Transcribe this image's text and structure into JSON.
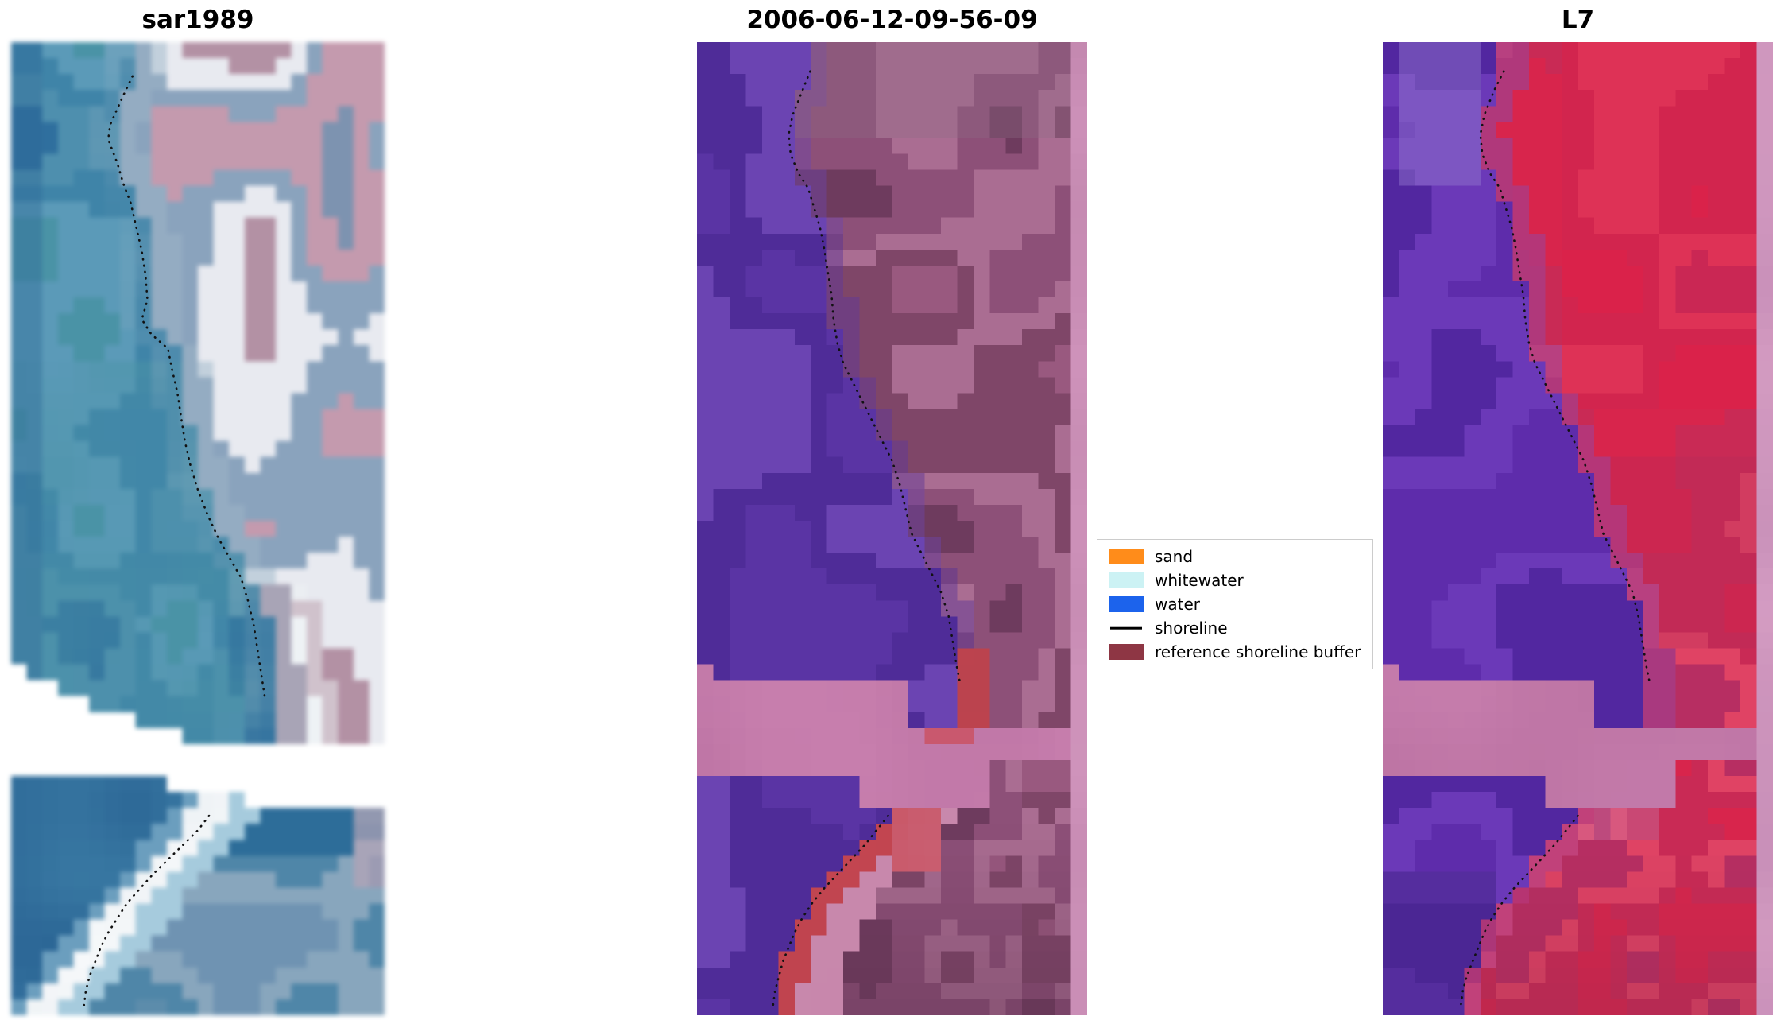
{
  "figure": {
    "background": "#ffffff",
    "shoreline_dot_color": "#111111",
    "panels": [
      {
        "id": "sar1989",
        "title": "sar1989",
        "grid": {
          "cols": 24,
          "rows": 61
        },
        "colors": {
          "water": [
            "#2f6f9e",
            "#4e8fae",
            "#3f84a8",
            "#5b9ab8",
            "#4a93a6"
          ],
          "teal": "#4a93a6",
          "deep": "#2c6796",
          "land": [
            "#b391a4",
            "#e8eaf0",
            "#8aa3bd",
            "#c49aae",
            "#7d93b0"
          ],
          "boundary_light": "#9db6c8",
          "white": "#ffffff",
          "near_white": "#eef2f5",
          "light_blue": "#a6cbdd",
          "dark_blue": "#2d6d99",
          "pink": "#c9a3b4",
          "steel": "#3a7aa4",
          "bluegray": [
            "#6f93b2",
            "#88a6bd",
            "#4f86a8",
            "#5c8cab"
          ]
        }
      },
      {
        "id": "scene2006",
        "title": "2006-06-12-09-56-09",
        "grid": {
          "cols": 24,
          "rows": 61
        },
        "colors": {
          "purple": [
            "#5a34a4",
            "#4f2c98",
            "#6b44b2"
          ],
          "mauve": [
            "#99597f",
            "#7f4668",
            "#aa6d92",
            "#8d5078",
            "#6e3b5e"
          ],
          "mauve_gray": "#8d6b84",
          "band_pink": "#c87fae",
          "band_pink2": "#bd74a4",
          "red": "#c94752",
          "red_dark": "#a83d48",
          "pink_light": "#c88aab",
          "maroon": "#5f3350",
          "strip": "#cf93bb",
          "strip2": "#c287ae"
        }
      },
      {
        "id": "L7",
        "title": "L7",
        "grid": {
          "cols": 24,
          "rows": 61
        },
        "colors": {
          "purple": [
            "#5e2cab",
            "#6b39b8",
            "#5227a0"
          ],
          "purple_dark": "#46258c",
          "lavender": "#8f72cc",
          "red": [
            "#d8254c",
            "#c92a55",
            "#e04364",
            "#b72e62"
          ],
          "red_bright": "#dc2047",
          "red_deep": "#b02a58",
          "dark_red": "#8e2a4e",
          "magenta_edge": "#a23f8f",
          "band_pink": "#c87fae",
          "band_pink2": "#bd74a4",
          "strip": "#d49cc2",
          "strip2": "#c88fb8"
        }
      }
    ],
    "legend": {
      "border_color": "#cccccc",
      "background": "#ffffff",
      "entries": [
        {
          "label": "sand",
          "color": "#ff8c1a",
          "type": "patch"
        },
        {
          "label": "whitewater",
          "color": "#ccf2f4",
          "type": "patch"
        },
        {
          "label": "water",
          "color": "#1c63ec",
          "type": "patch"
        },
        {
          "label": "shoreline",
          "color": "#000000",
          "type": "line"
        },
        {
          "label": "reference shoreline buffer",
          "color": "#8e3644",
          "type": "patch"
        }
      ]
    }
  },
  "chart_data": {
    "type": "heatmap",
    "title": "",
    "panels": [
      {
        "title": "sar1989",
        "content": "SAR backscatter scene: blue water on the left, bright pink/white shore on the right, white no-data gap band near the bottom, dotted detected shoreline"
      },
      {
        "title": "2006-06-12-09-56-09",
        "content": "Classified optical scene: purple water, mauve land with reference shoreline buffer, pink no-data band, red sand pixels along shoreline, dotted shoreline"
      },
      {
        "title": "L7",
        "content": "Landsat-7 scene: purple water, red land, pink no-data band, dotted shoreline"
      }
    ],
    "legend_entries": [
      "sand",
      "whitewater",
      "water",
      "shoreline",
      "reference shoreline buffer"
    ],
    "shorelines": {
      "sar1989": {
        "upper": [
          [
            0.325,
            0.035
          ],
          [
            0.3,
            0.055
          ],
          [
            0.265,
            0.085
          ],
          [
            0.26,
            0.1
          ],
          [
            0.285,
            0.125
          ],
          [
            0.3,
            0.145
          ],
          [
            0.32,
            0.165
          ],
          [
            0.335,
            0.19
          ],
          [
            0.35,
            0.215
          ],
          [
            0.36,
            0.24
          ],
          [
            0.365,
            0.265
          ],
          [
            0.35,
            0.285
          ],
          [
            0.375,
            0.3
          ],
          [
            0.42,
            0.315
          ],
          [
            0.43,
            0.335
          ],
          [
            0.445,
            0.36
          ],
          [
            0.455,
            0.385
          ],
          [
            0.465,
            0.41
          ],
          [
            0.48,
            0.435
          ],
          [
            0.5,
            0.46
          ],
          [
            0.525,
            0.485
          ],
          [
            0.555,
            0.51
          ],
          [
            0.585,
            0.53
          ],
          [
            0.615,
            0.55
          ],
          [
            0.635,
            0.575
          ],
          [
            0.65,
            0.6
          ],
          [
            0.66,
            0.625
          ],
          [
            0.67,
            0.65
          ],
          [
            0.68,
            0.675
          ]
        ],
        "lower": [
          [
            0.53,
            0.795
          ],
          [
            0.5,
            0.81
          ],
          [
            0.46,
            0.825
          ],
          [
            0.42,
            0.84
          ],
          [
            0.38,
            0.855
          ],
          [
            0.345,
            0.87
          ],
          [
            0.31,
            0.885
          ],
          [
            0.285,
            0.9
          ],
          [
            0.26,
            0.915
          ],
          [
            0.24,
            0.93
          ],
          [
            0.225,
            0.945
          ],
          [
            0.21,
            0.96
          ],
          [
            0.2,
            0.975
          ],
          [
            0.195,
            0.99
          ]
        ]
      },
      "scene2006": {
        "upper": [
          [
            0.29,
            0.03
          ],
          [
            0.27,
            0.05
          ],
          [
            0.245,
            0.075
          ],
          [
            0.235,
            0.095
          ],
          [
            0.24,
            0.115
          ],
          [
            0.26,
            0.135
          ],
          [
            0.285,
            0.15
          ],
          [
            0.3,
            0.17
          ],
          [
            0.315,
            0.19
          ],
          [
            0.325,
            0.21
          ],
          [
            0.335,
            0.235
          ],
          [
            0.345,
            0.26
          ],
          [
            0.35,
            0.285
          ],
          [
            0.36,
            0.31
          ],
          [
            0.375,
            0.33
          ],
          [
            0.4,
            0.35
          ],
          [
            0.425,
            0.37
          ],
          [
            0.45,
            0.39
          ],
          [
            0.475,
            0.41
          ],
          [
            0.5,
            0.43
          ],
          [
            0.52,
            0.455
          ],
          [
            0.535,
            0.48
          ],
          [
            0.55,
            0.505
          ],
          [
            0.575,
            0.525
          ],
          [
            0.6,
            0.545
          ],
          [
            0.625,
            0.565
          ],
          [
            0.645,
            0.59
          ],
          [
            0.655,
            0.615
          ],
          [
            0.665,
            0.64
          ],
          [
            0.675,
            0.66
          ]
        ],
        "lower": [
          [
            0.49,
            0.795
          ],
          [
            0.46,
            0.81
          ],
          [
            0.43,
            0.825
          ],
          [
            0.395,
            0.84
          ],
          [
            0.36,
            0.855
          ],
          [
            0.325,
            0.87
          ],
          [
            0.295,
            0.885
          ],
          [
            0.27,
            0.9
          ],
          [
            0.25,
            0.915
          ],
          [
            0.235,
            0.93
          ],
          [
            0.22,
            0.945
          ],
          [
            0.21,
            0.96
          ],
          [
            0.2,
            0.975
          ],
          [
            0.195,
            0.99
          ]
        ]
      },
      "L7": {
        "upper": [
          [
            0.31,
            0.03
          ],
          [
            0.285,
            0.05
          ],
          [
            0.26,
            0.075
          ],
          [
            0.25,
            0.095
          ],
          [
            0.255,
            0.115
          ],
          [
            0.275,
            0.135
          ],
          [
            0.3,
            0.15
          ],
          [
            0.315,
            0.17
          ],
          [
            0.33,
            0.19
          ],
          [
            0.34,
            0.21
          ],
          [
            0.35,
            0.235
          ],
          [
            0.36,
            0.26
          ],
          [
            0.365,
            0.285
          ],
          [
            0.375,
            0.31
          ],
          [
            0.39,
            0.33
          ],
          [
            0.415,
            0.35
          ],
          [
            0.44,
            0.37
          ],
          [
            0.465,
            0.39
          ],
          [
            0.49,
            0.41
          ],
          [
            0.515,
            0.43
          ],
          [
            0.535,
            0.455
          ],
          [
            0.55,
            0.48
          ],
          [
            0.565,
            0.505
          ],
          [
            0.59,
            0.525
          ],
          [
            0.615,
            0.545
          ],
          [
            0.64,
            0.565
          ],
          [
            0.655,
            0.59
          ],
          [
            0.665,
            0.615
          ],
          [
            0.675,
            0.64
          ],
          [
            0.685,
            0.66
          ]
        ],
        "lower": [
          [
            0.5,
            0.795
          ],
          [
            0.47,
            0.81
          ],
          [
            0.44,
            0.825
          ],
          [
            0.405,
            0.84
          ],
          [
            0.37,
            0.855
          ],
          [
            0.335,
            0.87
          ],
          [
            0.305,
            0.885
          ],
          [
            0.28,
            0.9
          ],
          [
            0.26,
            0.915
          ],
          [
            0.245,
            0.93
          ],
          [
            0.23,
            0.945
          ],
          [
            0.215,
            0.96
          ],
          [
            0.205,
            0.975
          ],
          [
            0.2,
            0.99
          ]
        ]
      }
    }
  }
}
